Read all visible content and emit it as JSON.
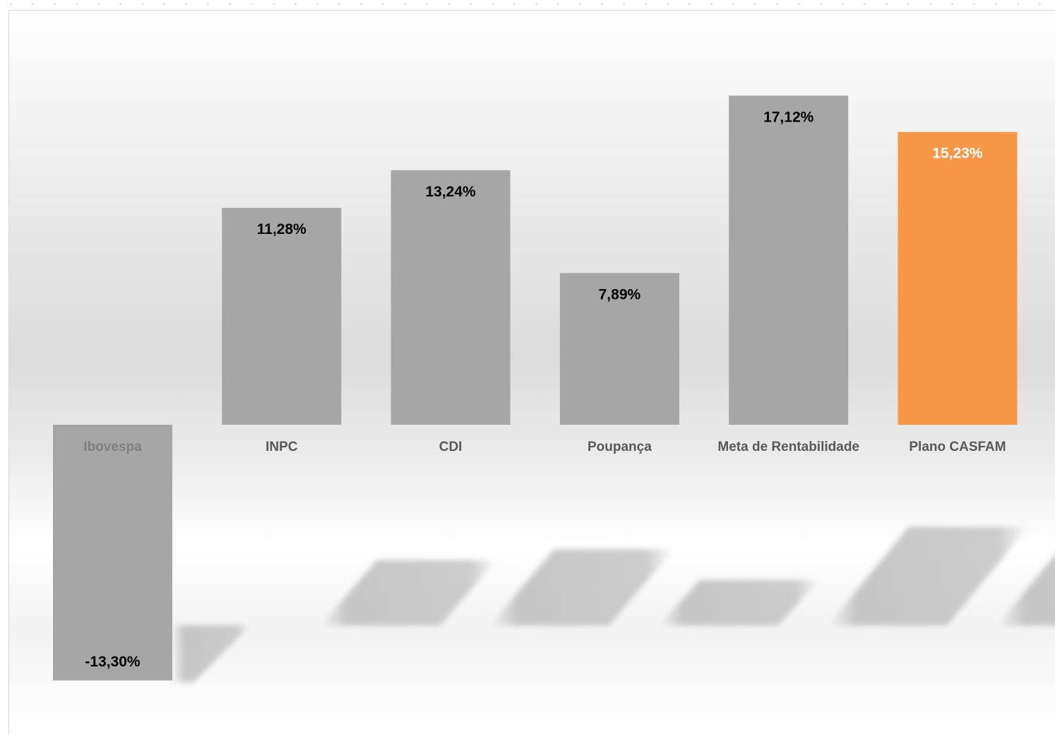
{
  "chart_data": {
    "type": "bar",
    "categories": [
      "Ibovespa",
      "INPC",
      "CDI",
      "Poupança",
      "Meta de Rentabilidade",
      "Plano CASFAM"
    ],
    "values": [
      -13.3,
      11.28,
      13.24,
      7.89,
      17.12,
      15.23
    ],
    "value_labels": [
      "-13,30%",
      "11,28%",
      "13,24%",
      "7,89%",
      "17,12%",
      "15,23%"
    ],
    "colors": [
      "#a6a6a6",
      "#a6a6a6",
      "#a6a6a6",
      "#a6a6a6",
      "#a6a6a6",
      "#f79646"
    ],
    "value_label_colors": [
      "#000000",
      "#000000",
      "#000000",
      "#000000",
      "#000000",
      "#ffffff"
    ],
    "category_label_colors": [
      "#7f7f7f",
      "#595959",
      "#595959",
      "#595959",
      "#595959",
      "#595959"
    ],
    "title": "",
    "xlabel": "",
    "ylabel": "",
    "ylim": [
      -14,
      20
    ],
    "grid": false,
    "legend": "none"
  }
}
